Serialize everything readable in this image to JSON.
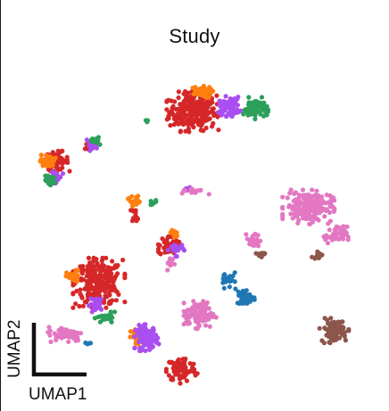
{
  "chart_data": {
    "type": "scatter",
    "title": "Study",
    "xlabel": "UMAP1",
    "ylabel": "UMAP2",
    "grid": false,
    "legend": "none",
    "axes": "scale-bar",
    "xlim": [
      0,
      100
    ],
    "ylim": [
      0,
      100
    ],
    "series": [
      {
        "color": "#d62728",
        "clusters": [
          {
            "cx": 49.5,
            "cy": 81.0,
            "sx": 3.2,
            "sy": 2.6,
            "n": 260
          },
          {
            "cx": 12.5,
            "cy": 67.0,
            "sx": 1.6,
            "sy": 1.3,
            "n": 60
          },
          {
            "cx": 24.0,
            "cy": 32.5,
            "sx": 3.2,
            "sy": 3.2,
            "n": 260
          },
          {
            "cx": 46.5,
            "cy": 8.0,
            "sx": 2.0,
            "sy": 1.8,
            "n": 90
          },
          {
            "cx": 43.0,
            "cy": 43.0,
            "sx": 1.3,
            "sy": 1.4,
            "n": 45
          },
          {
            "cx": 34.0,
            "cy": 52.0,
            "sx": 0.6,
            "sy": 1.0,
            "n": 12
          },
          {
            "cx": 21.0,
            "cy": 71.0,
            "sx": 0.7,
            "sy": 0.6,
            "n": 10
          }
        ]
      },
      {
        "color": "#ff7f0e",
        "clusters": [
          {
            "cx": 51.5,
            "cy": 86.5,
            "sx": 1.6,
            "sy": 0.8,
            "n": 50
          },
          {
            "cx": 10.0,
            "cy": 67.0,
            "sx": 1.0,
            "sy": 0.9,
            "n": 30
          },
          {
            "cx": 33.5,
            "cy": 56.0,
            "sx": 0.8,
            "sy": 0.8,
            "n": 15
          },
          {
            "cx": 17.0,
            "cy": 34.0,
            "sx": 0.9,
            "sy": 1.0,
            "n": 28
          },
          {
            "cx": 34.5,
            "cy": 17.0,
            "sx": 0.9,
            "sy": 1.2,
            "n": 30
          },
          {
            "cx": 44.5,
            "cy": 46.5,
            "sx": 0.7,
            "sy": 0.6,
            "n": 12
          }
        ]
      },
      {
        "color": "#a94ef0",
        "clusters": [
          {
            "cx": 59.5,
            "cy": 82.5,
            "sx": 1.4,
            "sy": 1.3,
            "n": 75
          },
          {
            "cx": 12.0,
            "cy": 62.5,
            "sx": 1.0,
            "sy": 0.8,
            "n": 32
          },
          {
            "cx": 22.0,
            "cy": 71.5,
            "sx": 0.8,
            "sy": 0.7,
            "n": 18
          },
          {
            "cx": 23.5,
            "cy": 26.5,
            "sx": 1.0,
            "sy": 1.0,
            "n": 30
          },
          {
            "cx": 37.0,
            "cy": 17.0,
            "sx": 1.5,
            "sy": 1.7,
            "n": 90
          },
          {
            "cx": 45.0,
            "cy": 42.0,
            "sx": 1.0,
            "sy": 0.9,
            "n": 22
          },
          {
            "cx": 48.0,
            "cy": 59.0,
            "sx": 0.6,
            "sy": 0.4,
            "n": 8
          }
        ]
      },
      {
        "color": "#2ca05a",
        "clusters": [
          {
            "cx": 66.5,
            "cy": 82.0,
            "sx": 1.6,
            "sy": 1.4,
            "n": 70
          },
          {
            "cx": 10.5,
            "cy": 61.5,
            "sx": 0.9,
            "sy": 0.6,
            "n": 18
          },
          {
            "cx": 23.5,
            "cy": 73.0,
            "sx": 0.7,
            "sy": 0.6,
            "n": 14
          },
          {
            "cx": 26.0,
            "cy": 22.5,
            "sx": 1.4,
            "sy": 0.8,
            "n": 28
          },
          {
            "cx": 38.5,
            "cy": 55.0,
            "sx": 0.6,
            "sy": 0.5,
            "n": 8
          },
          {
            "cx": 37.2,
            "cy": 78.5,
            "sx": 0.3,
            "sy": 0.2,
            "n": 3
          }
        ]
      },
      {
        "color": "#e377c2",
        "clusters": [
          {
            "cx": 81.0,
            "cy": 54.0,
            "sx": 3.2,
            "sy": 2.2,
            "n": 200
          },
          {
            "cx": 88.5,
            "cy": 46.0,
            "sx": 1.5,
            "sy": 1.2,
            "n": 45
          },
          {
            "cx": 66.0,
            "cy": 44.5,
            "sx": 0.9,
            "sy": 1.1,
            "n": 25
          },
          {
            "cx": 51.5,
            "cy": 23.5,
            "sx": 2.0,
            "sy": 1.8,
            "n": 110
          },
          {
            "cx": 15.0,
            "cy": 18.0,
            "sx": 2.4,
            "sy": 1.0,
            "n": 70
          },
          {
            "cx": 43.5,
            "cy": 38.0,
            "sx": 0.5,
            "sy": 0.9,
            "n": 12
          },
          {
            "cx": 50.0,
            "cy": 58.5,
            "sx": 1.8,
            "sy": 0.4,
            "n": 18
          }
        ]
      },
      {
        "color": "#1f77b4",
        "clusters": [
          {
            "cx": 64.0,
            "cy": 28.5,
            "sx": 1.3,
            "sy": 1.1,
            "n": 45
          },
          {
            "cx": 59.0,
            "cy": 34.0,
            "sx": 0.9,
            "sy": 1.4,
            "n": 20
          },
          {
            "cx": 21.0,
            "cy": 15.5,
            "sx": 0.5,
            "sy": 0.4,
            "n": 5
          }
        ]
      },
      {
        "color": "#8c564b",
        "clusters": [
          {
            "cx": 88.0,
            "cy": 19.0,
            "sx": 1.8,
            "sy": 1.6,
            "n": 90
          },
          {
            "cx": 68.0,
            "cy": 40.5,
            "sx": 0.6,
            "sy": 0.5,
            "n": 12
          },
          {
            "cx": 83.5,
            "cy": 40.5,
            "sx": 0.7,
            "sy": 0.5,
            "n": 14
          }
        ]
      }
    ]
  }
}
